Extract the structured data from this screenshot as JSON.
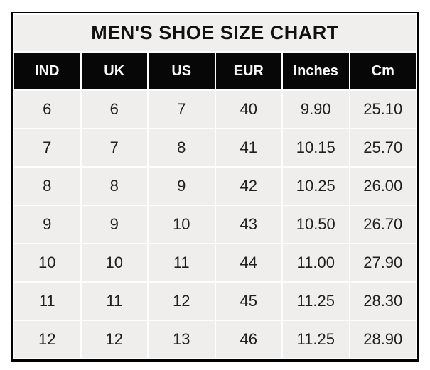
{
  "chart_data": {
    "type": "table",
    "title": "MEN'S SHOE SIZE CHART",
    "columns": [
      "IND",
      "UK",
      "US",
      "EUR",
      "Inches",
      "Cm"
    ],
    "rows": [
      [
        "6",
        "6",
        "7",
        "40",
        "9.90",
        "25.10"
      ],
      [
        "7",
        "7",
        "8",
        "41",
        "10.15",
        "25.70"
      ],
      [
        "8",
        "8",
        "9",
        "42",
        "10.25",
        "26.00"
      ],
      [
        "9",
        "9",
        "10",
        "43",
        "10.50",
        "26.70"
      ],
      [
        "10",
        "10",
        "11",
        "44",
        "11.00",
        "27.90"
      ],
      [
        "11",
        "11",
        "12",
        "45",
        "11.25",
        "28.30"
      ],
      [
        "12",
        "12",
        "13",
        "46",
        "11.25",
        "28.90"
      ]
    ],
    "layout": {
      "grid": "white gridlines between cells",
      "legend": "none"
    }
  },
  "colors": {
    "page_background": "#ffffff",
    "outer_border": "#000000",
    "title_background": "#f0efee",
    "header_background": "#070707",
    "header_text": "#f8f8f8",
    "cell_background": "#efeeec",
    "cell_text": "#1f1f1f",
    "gridline": "#fdfdfd"
  }
}
